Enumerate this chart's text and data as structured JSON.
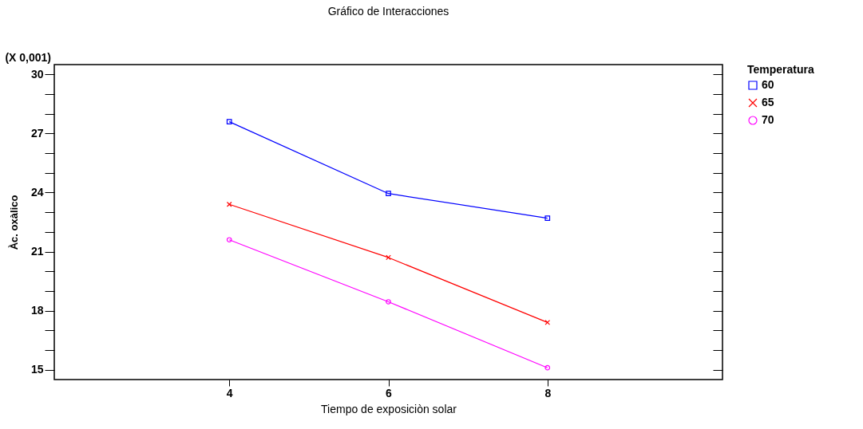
{
  "chart_data": {
    "type": "line",
    "title": "Gráfico de Interacciones",
    "xlabel": "Tiempo de exposiciòn solar",
    "ylabel": "Àc. oxàlico",
    "legend_title": "Temperatura",
    "legend": "top right",
    "annotations": [
      "(X 0,001)"
    ],
    "x": [
      4,
      6,
      8
    ],
    "xlim": [
      1.8,
      10.2
    ],
    "xticks": [
      4,
      6,
      8
    ],
    "ylim": [
      14.5,
      30.5
    ],
    "yticks": [
      15,
      {
        "value": 16,
        "label": null
      },
      {
        "value": 17,
        "label": null
      },
      18,
      {
        "value": 19,
        "label": null
      },
      {
        "value": 20,
        "label": null
      },
      21,
      {
        "value": 22,
        "label": null
      },
      {
        "value": 23,
        "label": null
      },
      24,
      {
        "value": 25,
        "label": null
      },
      {
        "value": 26,
        "label": null
      },
      27,
      {
        "value": 28,
        "label": null
      },
      {
        "value": 29,
        "label": null
      },
      30
    ],
    "grid": false,
    "series": [
      {
        "name": "60",
        "color": "#0000ff",
        "marker": "square",
        "values": [
          27.6,
          23.95,
          22.7
        ]
      },
      {
        "name": "65",
        "color": "#ff0000",
        "marker": "cross",
        "values": [
          23.4,
          20.7,
          17.4
        ]
      },
      {
        "name": "70",
        "color": "#ff00ff",
        "marker": "circle",
        "values": [
          21.6,
          18.45,
          15.1
        ]
      }
    ]
  }
}
